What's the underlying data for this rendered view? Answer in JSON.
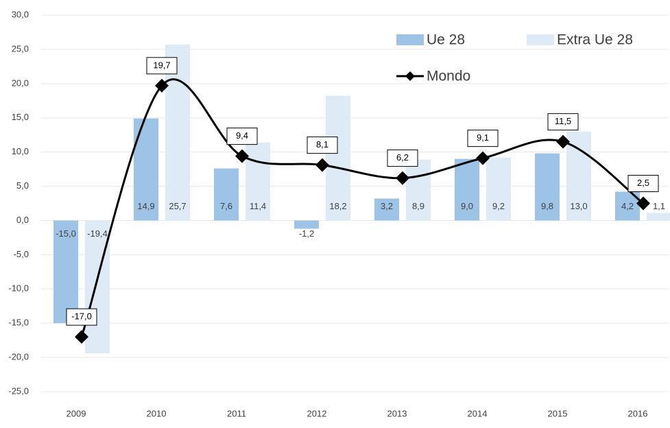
{
  "chart_data": {
    "type": "bar-line",
    "categories": [
      "2009",
      "2010",
      "2011",
      "2012",
      "2013",
      "2014",
      "2015",
      "2016"
    ],
    "series": [
      {
        "name": "Ue 28",
        "type": "bar",
        "color": "#9dc3e6",
        "values": [
          -15.0,
          14.9,
          7.6,
          -1.2,
          3.2,
          9.0,
          9.8,
          4.2
        ],
        "value_labels": [
          "-15,0",
          "14,9",
          "7,6",
          "-1,2",
          "3,2",
          "9,0",
          "9,8",
          "4,2"
        ]
      },
      {
        "name": "Extra Ue 28",
        "type": "bar",
        "color": "#deebf7",
        "values": [
          -19.4,
          25.7,
          11.4,
          18.2,
          8.9,
          9.2,
          13.0,
          1.1
        ],
        "value_labels": [
          "-19,4",
          "25,7",
          "11,4",
          "18,2",
          "8,9",
          "9,2",
          "13,0",
          "1,1"
        ]
      },
      {
        "name": "Mondo",
        "type": "line",
        "color": "#000000",
        "values": [
          -17.0,
          19.7,
          9.4,
          8.1,
          6.2,
          9.1,
          11.5,
          2.5
        ],
        "value_labels": [
          "-17,0",
          "19,7",
          "9,4",
          "8,1",
          "6,2",
          "9,1",
          "11,5",
          "2,5"
        ]
      }
    ],
    "ylim": [
      -25,
      30
    ],
    "yticks": [
      {
        "value": -25,
        "label": "-25,0"
      },
      {
        "value": -20,
        "label": "-20,0"
      },
      {
        "value": -15,
        "label": "-15,0"
      },
      {
        "value": -10,
        "label": "-10,0"
      },
      {
        "value": -5,
        "label": "-5,0"
      },
      {
        "value": 0,
        "label": "0,0"
      },
      {
        "value": 5,
        "label": "5,0"
      },
      {
        "value": 10,
        "label": "10,0"
      },
      {
        "value": 15,
        "label": "15,0"
      },
      {
        "value": 20,
        "label": "20,0"
      },
      {
        "value": 25,
        "label": "25,0"
      },
      {
        "value": 30,
        "label": "30,0"
      }
    ],
    "grid": true,
    "legend": "upper right",
    "smooth": true
  }
}
